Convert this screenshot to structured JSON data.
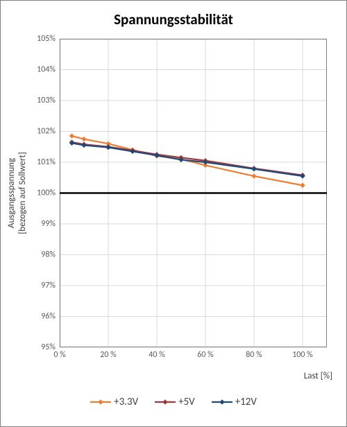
{
  "chart": {
    "type": "line",
    "title": "Spannungsstabilität",
    "y_axis_label_line1": "Ausgangsspannung",
    "y_axis_label_line2": "[bezogen auf Sollwert]",
    "x_axis_label": "Last [%]",
    "background_color": "#ffffff",
    "grid_color": "#d9d9d9",
    "axis_border_color": "#808080",
    "tick_label_color": "#595959",
    "title_fontsize": 21,
    "label_fontsize": 13,
    "tick_fontsize": 12,
    "x": {
      "min": 0,
      "max": 110,
      "tick_step": 20,
      "ticks": [
        0,
        20,
        40,
        60,
        80,
        100
      ],
      "tick_labels": [
        "0 %",
        "20 %",
        "40 %",
        "60 %",
        "80 %",
        "100 %"
      ]
    },
    "y": {
      "min": 95,
      "max": 105,
      "tick_step": 1,
      "ticks": [
        95,
        96,
        97,
        98,
        99,
        100,
        101,
        102,
        103,
        104,
        105
      ],
      "tick_labels": [
        "95%",
        "96%",
        "97%",
        "98%",
        "99%",
        "100%",
        "101%",
        "102%",
        "103%",
        "104%",
        "105%"
      ]
    },
    "reference_line": {
      "y": 100,
      "color": "#000000",
      "width": 2.5
    },
    "series": [
      {
        "name": "+3.3V",
        "color": "#ed7d31",
        "marker": "diamond",
        "marker_fill": "#ed7d31",
        "marker_size": 6,
        "line_width": 2.2,
        "x": [
          5,
          10,
          20,
          30,
          40,
          50,
          60,
          80,
          100
        ],
        "y": [
          101.85,
          101.75,
          101.6,
          101.4,
          101.2,
          101.1,
          100.9,
          100.55,
          100.25
        ]
      },
      {
        "name": "+5V",
        "color": "#9e3a38",
        "marker": "diamond",
        "marker_fill": "#9e3a38",
        "marker_size": 6,
        "line_width": 2.2,
        "x": [
          5,
          10,
          20,
          30,
          40,
          50,
          60,
          80,
          100
        ],
        "y": [
          101.65,
          101.58,
          101.5,
          101.38,
          101.25,
          101.15,
          101.05,
          100.8,
          100.58
        ]
      },
      {
        "name": "+12V",
        "color": "#1f497d",
        "marker": "diamond",
        "marker_fill": "#1f497d",
        "marker_size": 6,
        "line_width": 2.2,
        "x": [
          5,
          10,
          20,
          30,
          40,
          50,
          60,
          80,
          100
        ],
        "y": [
          101.62,
          101.55,
          101.48,
          101.35,
          101.22,
          101.08,
          101.0,
          100.78,
          100.55
        ]
      }
    ]
  }
}
